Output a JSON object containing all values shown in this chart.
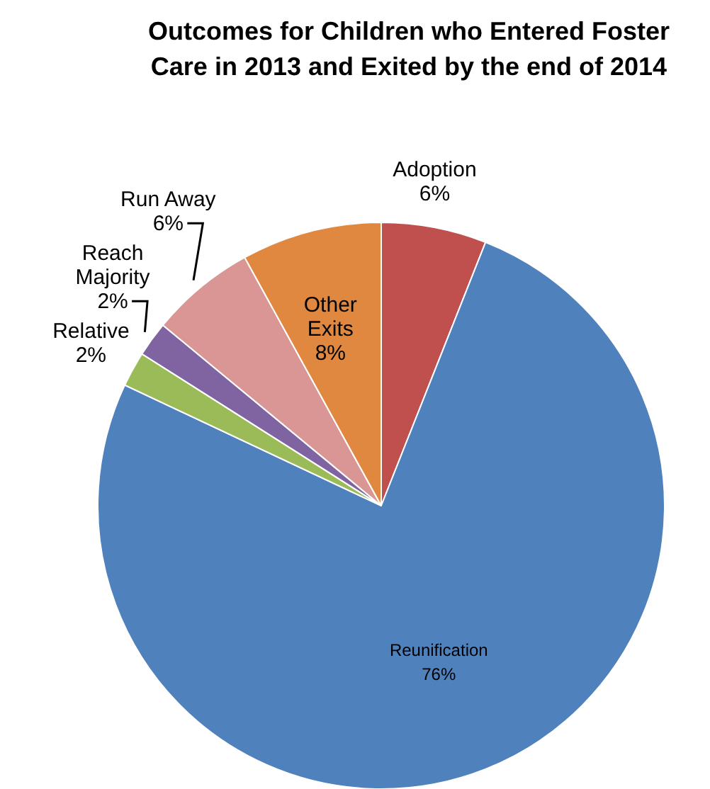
{
  "chart_data": {
    "type": "pie",
    "title": "Outcomes for Children who Entered Foster Care in 2013 and Exited by the end of 2014",
    "categories": [
      "Adoption",
      "Reunification",
      "Relative",
      "Reach Majority",
      "Run Away",
      "Other Exits"
    ],
    "values": [
      6,
      76,
      2,
      2,
      6,
      8
    ],
    "value_labels": [
      "6%",
      "76%",
      "2%",
      "2%",
      "6%",
      "8%"
    ],
    "colors": [
      "#c0504d",
      "#4f81bd",
      "#9bbb59",
      "#8064a2",
      "#d99694",
      "#e0883f"
    ],
    "legend": false
  }
}
